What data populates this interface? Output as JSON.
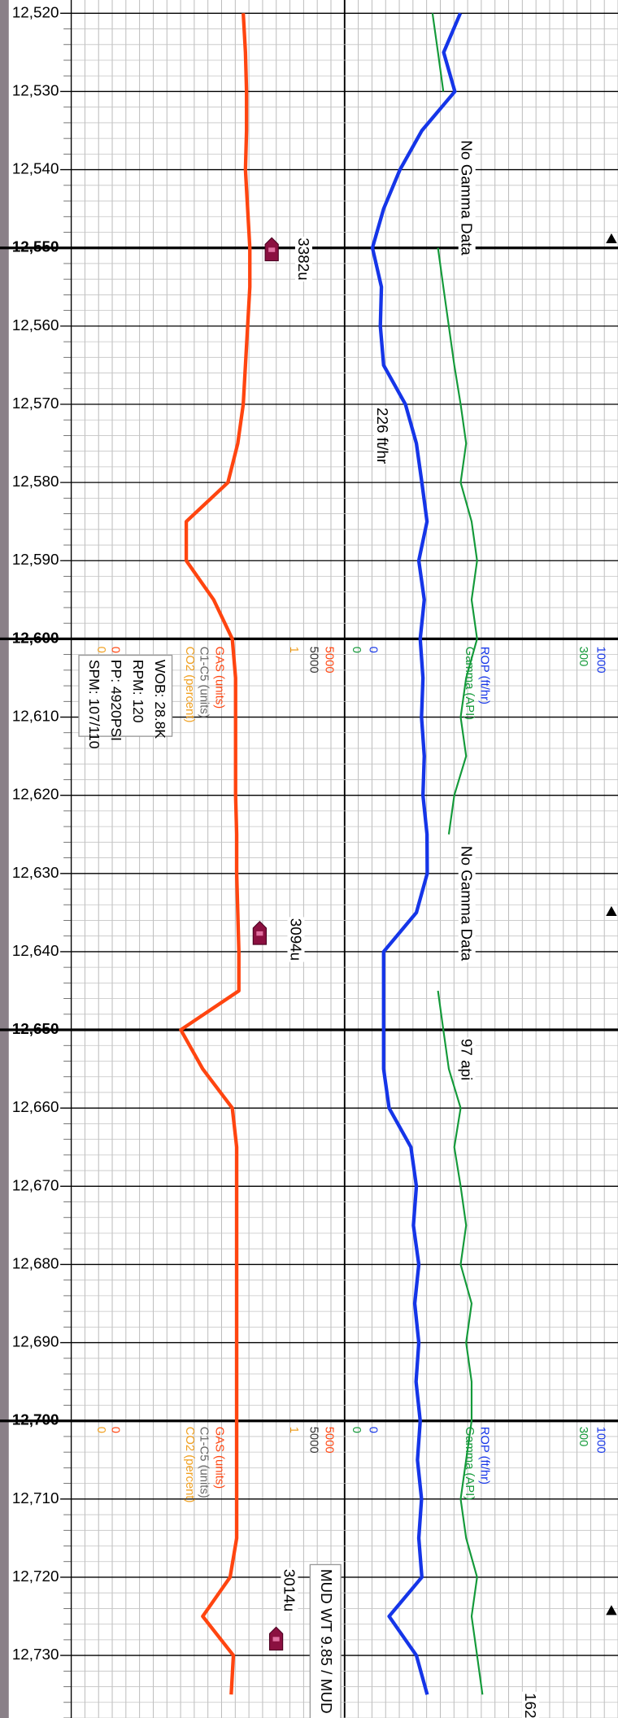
{
  "chart_data": {
    "type": "mudlog",
    "ylim": [
      12518.3,
      12738
    ],
    "major_tick_every": 50,
    "yticks": [
      {
        "value": 12520,
        "label": "12,520"
      },
      {
        "value": 12530,
        "label": "12,530"
      },
      {
        "value": 12540,
        "label": "12,540"
      },
      {
        "value": 12550,
        "label": "12,550"
      },
      {
        "value": 12560,
        "label": "12,560"
      },
      {
        "value": 12570,
        "label": "12,570"
      },
      {
        "value": 12580,
        "label": "12,580"
      },
      {
        "value": 12590,
        "label": "12,590"
      },
      {
        "value": 12600,
        "label": "12,600"
      },
      {
        "value": 12610,
        "label": "12,610"
      },
      {
        "value": 12620,
        "label": "12,620"
      },
      {
        "value": 12630,
        "label": "12,630"
      },
      {
        "value": 12640,
        "label": "12,640"
      },
      {
        "value": 12650,
        "label": "12,650"
      },
      {
        "value": 12660,
        "label": "12,660"
      },
      {
        "value": 12670,
        "label": "12,670"
      },
      {
        "value": 12680,
        "label": "12,680"
      },
      {
        "value": 12690,
        "label": "12,690"
      },
      {
        "value": 12700,
        "label": "12,700"
      },
      {
        "value": 12710,
        "label": "12,710"
      },
      {
        "value": 12720,
        "label": "12,720"
      },
      {
        "value": 12730,
        "label": "12,730"
      }
    ],
    "x": [
      12520,
      12525,
      12530,
      12535,
      12540,
      12545,
      12550,
      12555,
      12560,
      12565,
      12570,
      12575,
      12580,
      12585,
      12590,
      12595,
      12600,
      12605,
      12610,
      12615,
      12620,
      12625,
      12630,
      12635,
      12640,
      12645,
      12650,
      12655,
      12660,
      12665,
      12670,
      12675,
      12680,
      12685,
      12690,
      12695,
      12700,
      12705,
      12710,
      12715,
      12720,
      12725,
      12730,
      12735
    ],
    "series": [
      {
        "name": "GAS (units)",
        "color": "#ff4510",
        "width": 3.2,
        "xlim": [
          0,
          5000
        ],
        "values": [
          3140,
          3180,
          3200,
          3200,
          3180,
          3220,
          3260,
          3260,
          3220,
          3180,
          3140,
          3040,
          2860,
          2100,
          2100,
          2600,
          2940,
          3000,
          3000,
          3000,
          3000,
          3020,
          3020,
          3040,
          3060,
          3060,
          2000,
          2400,
          2940,
          3020,
          3020,
          3020,
          3020,
          3020,
          3020,
          3020,
          3020,
          3020,
          3020,
          3020,
          2900,
          2400,
          2960,
          2920
        ]
      },
      {
        "name": "ROP (ft/hr)",
        "color": "#1535e8",
        "width": 3.2,
        "xlim": [
          0,
          1000
        ],
        "values": [
          422,
          361,
          402,
          281,
          201,
          141,
          100,
          133,
          129,
          141,
          221,
          261,
          281,
          300,
          270,
          290,
          275,
          285,
          280,
          290,
          285,
          300,
          301,
          261,
          141,
          141,
          141,
          141,
          161,
          241,
          261,
          250,
          270,
          255,
          270,
          260,
          275,
          265,
          280,
          270,
          281,
          161,
          261,
          301
        ]
      },
      {
        "name": "Gamma (API)",
        "color": "#149a3a",
        "width": 1.6,
        "xlim": [
          0,
          300
        ],
        "values": [
          96,
          102,
          108,
          null,
          null,
          null,
          102,
          108,
          114,
          120,
          127,
          133,
          127,
          139,
          145,
          139,
          145,
          133,
          127,
          133,
          120,
          114,
          null,
          null,
          null,
          102,
          108,
          114,
          127,
          120,
          127,
          133,
          127,
          139,
          133,
          139,
          139,
          133,
          127,
          133,
          145,
          139,
          145,
          151
        ]
      }
    ],
    "headers": [
      {
        "items": [
          {
            "text": "0",
            "color": "#f0a020"
          },
          {
            "text": "0",
            "color": "#ff4510"
          },
          {
            "text": "GAS (units)",
            "color": "#ff4510"
          },
          {
            "text": "C1-C5 (units)",
            "color": "#666666"
          },
          {
            "text": "CO2 (percent)",
            "color": "#f0a020"
          },
          {
            "text": "5000",
            "color": "#ff4510"
          },
          {
            "text": "5000",
            "color": "#333333"
          },
          {
            "text": "1",
            "color": "#f0a020"
          },
          {
            "text": "0",
            "color": "#149a3a"
          },
          {
            "text": "0",
            "color": "#1535e8"
          },
          {
            "text": "ROP (ft/hr)",
            "color": "#1535e8"
          },
          {
            "text": "Gamma (API)",
            "color": "#149a3a"
          },
          {
            "text": "300",
            "color": "#149a3a"
          },
          {
            "text": "1000",
            "color": "#1535e8"
          }
        ]
      },
      {
        "items": [
          {
            "text": "0",
            "color": "#f0a020"
          },
          {
            "text": "0",
            "color": "#ff4510"
          },
          {
            "text": "GAS (units)",
            "color": "#ff4510"
          },
          {
            "text": "C1-C5 (units)",
            "color": "#666666"
          },
          {
            "text": "CO2 (percent)",
            "color": "#f0a020"
          },
          {
            "text": "5000",
            "color": "#ff4510"
          },
          {
            "text": "5000",
            "color": "#333333"
          },
          {
            "text": "1",
            "color": "#f0a020"
          },
          {
            "text": "0",
            "color": "#149a3a"
          },
          {
            "text": "0",
            "color": "#1535e8"
          },
          {
            "text": "ROP (ft/hr)",
            "color": "#1535e8"
          },
          {
            "text": "Gamma (API)",
            "color": "#149a3a"
          },
          {
            "text": "300",
            "color": "#149a3a"
          },
          {
            "text": "1000",
            "color": "#1535e8"
          }
        ]
      }
    ],
    "drilling_params": [
      "WOB: 28.8K",
      "RPM: 120",
      "PP: 4920PSI",
      "SPM: 107/110"
    ],
    "annotations": [
      "No Gamma Data",
      "3382u",
      "226 ft/hr",
      "No Gamma Data",
      "3094u",
      "97 api",
      "3014u",
      "MUD WT 9.85 / MUD",
      "162"
    ]
  }
}
